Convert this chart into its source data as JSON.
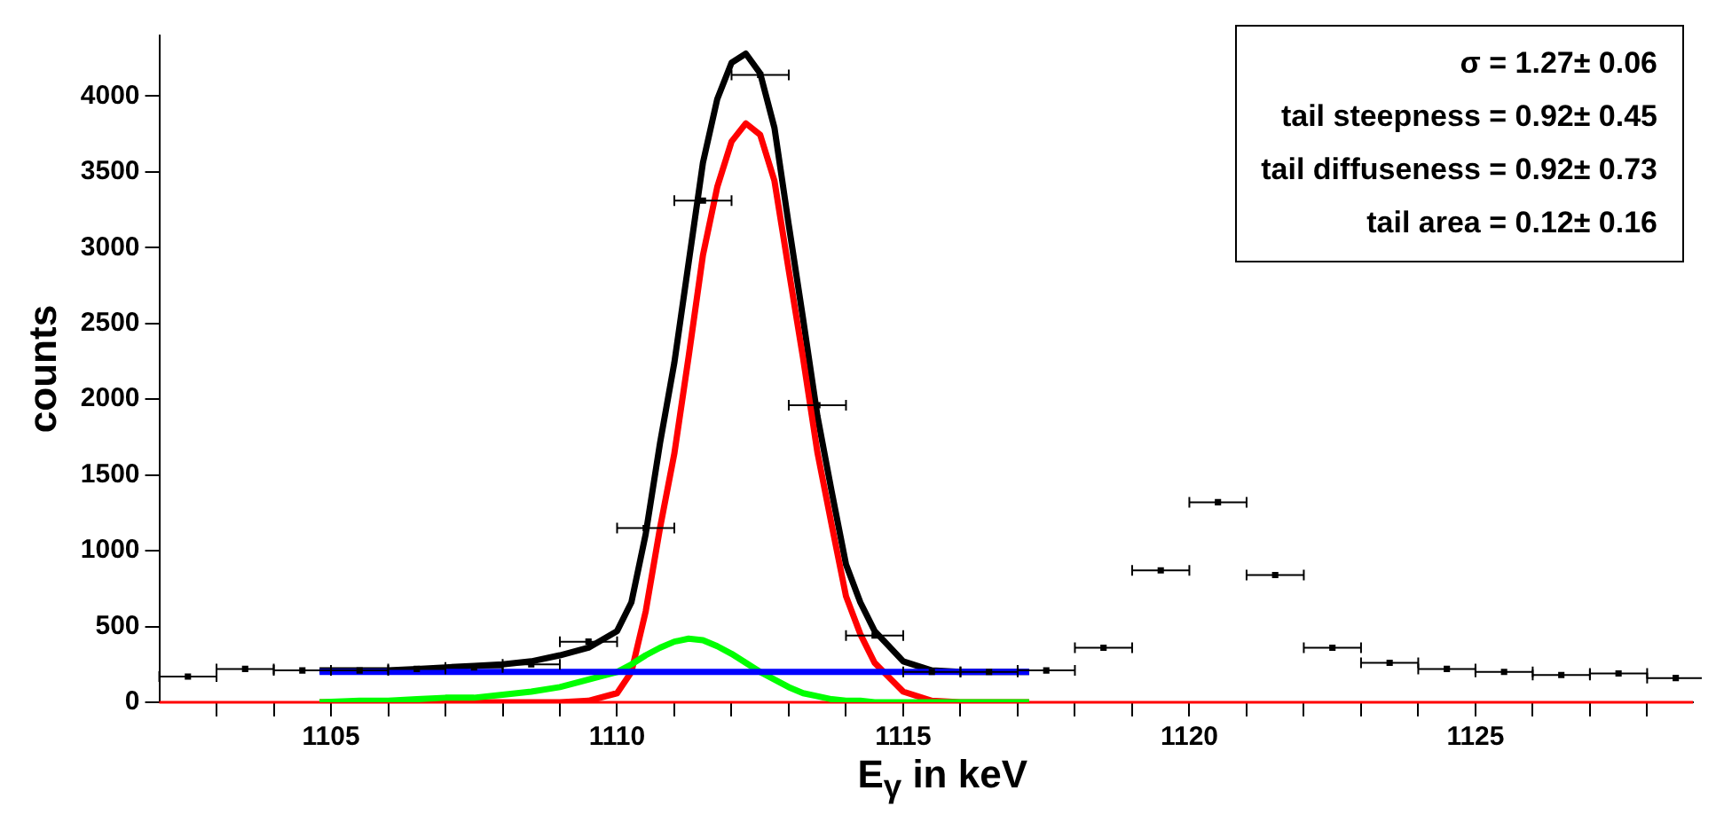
{
  "chart_data": {
    "type": "scatter",
    "xlabel": "E$_{γ}$ in keV",
    "ylabel": "counts",
    "annotations": [
      "σ = 1.27± 0.06",
      "tail steepness = 0.92± 0.45",
      "tail diffuseness = 0.92± 0.73",
      "tail area = 0.12± 0.16"
    ],
    "xlim": [
      1102,
      1128.8
    ],
    "xticks": [
      {
        "value": 1103,
        "label": null
      },
      {
        "value": 1104,
        "label": null
      },
      1105,
      {
        "value": 1106,
        "label": null
      },
      {
        "value": 1107,
        "label": null
      },
      {
        "value": 1108,
        "label": null
      },
      {
        "value": 1109,
        "label": null
      },
      1110,
      {
        "value": 1111,
        "label": null
      },
      {
        "value": 1112,
        "label": null
      },
      {
        "value": 1113,
        "label": null
      },
      {
        "value": 1114,
        "label": null
      },
      1115,
      {
        "value": 1116,
        "label": null
      },
      {
        "value": 1117,
        "label": null
      },
      {
        "value": 1118,
        "label": null
      },
      {
        "value": 1119,
        "label": null
      },
      1120,
      {
        "value": 1121,
        "label": null
      },
      {
        "value": 1122,
        "label": null
      },
      {
        "value": 1123,
        "label": null
      },
      {
        "value": 1124,
        "label": null
      },
      1125,
      {
        "value": 1126,
        "label": null
      },
      {
        "value": 1127,
        "label": null
      },
      {
        "value": 1128,
        "label": null
      }
    ],
    "ylim": [
      0,
      4400
    ],
    "yticks": [
      0,
      500,
      1000,
      1500,
      2000,
      2500,
      3000,
      3500,
      4000
    ],
    "grid": false,
    "legend": false,
    "ref_lines": [
      {
        "axis": "y",
        "value": 0,
        "color": "#ff0000"
      }
    ],
    "series": [
      {
        "type": "line",
        "marker": "none",
        "color": "#0000ff",
        "x": [
          1104.8,
          1117.2
        ],
        "values": [
          200,
          200
        ]
      },
      {
        "type": "line",
        "marker": "none",
        "color": "#00ff00",
        "x": [
          1104.8,
          1105.5,
          1106,
          1106.5,
          1107,
          1107.5,
          1108,
          1108.5,
          1109,
          1109.5,
          1110,
          1110.25,
          1110.5,
          1110.75,
          1111,
          1111.25,
          1111.5,
          1111.75,
          1112,
          1112.25,
          1112.5,
          1112.75,
          1113,
          1113.25,
          1113.5,
          1113.75,
          1114,
          1114.25,
          1114.5,
          1115,
          1115.5,
          1116,
          1116.5,
          1117.2
        ],
        "values": [
          0,
          10,
          10,
          20,
          30,
          30,
          50,
          70,
          100,
          150,
          200,
          250,
          310,
          360,
          400,
          420,
          410,
          370,
          320,
          260,
          200,
          150,
          100,
          60,
          40,
          20,
          10,
          10,
          0,
          0,
          0,
          0,
          0,
          0
        ]
      },
      {
        "type": "line",
        "marker": "none",
        "color": "#ff0000",
        "x": [
          1104.8,
          1105.5,
          1106,
          1106.5,
          1107,
          1107.5,
          1108,
          1108.5,
          1109,
          1109.5,
          1110,
          1110.25,
          1110.5,
          1110.75,
          1111,
          1111.25,
          1111.5,
          1111.75,
          1112,
          1112.25,
          1112.5,
          1112.75,
          1113,
          1113.25,
          1113.5,
          1113.75,
          1114,
          1114.25,
          1114.5,
          1115,
          1115.5,
          1116,
          1116.5,
          1117.2
        ],
        "values": [
          0,
          0,
          0,
          0,
          0,
          0,
          0,
          0,
          0,
          10,
          60,
          200,
          600,
          1150,
          1640,
          2280,
          2950,
          3400,
          3700,
          3820,
          3745,
          3440,
          2850,
          2270,
          1650,
          1170,
          700,
          450,
          260,
          70,
          10,
          0,
          0,
          0
        ]
      },
      {
        "type": "line",
        "marker": "none",
        "color": "#000000",
        "x": [
          1104.8,
          1105.5,
          1106,
          1106.5,
          1107,
          1107.5,
          1108,
          1108.5,
          1109,
          1109.5,
          1110,
          1110.25,
          1110.5,
          1110.75,
          1111,
          1111.25,
          1111.5,
          1111.75,
          1112,
          1112.25,
          1112.5,
          1112.75,
          1113,
          1113.25,
          1113.5,
          1113.75,
          1114,
          1114.25,
          1114.5,
          1115,
          1115.5,
          1116,
          1116.5,
          1117.2
        ],
        "values": [
          210,
          210,
          210,
          220,
          230,
          240,
          250,
          270,
          310,
          360,
          470,
          660,
          1110,
          1710,
          2240,
          2900,
          3560,
          3980,
          4220,
          4280,
          4150,
          3790,
          3150,
          2530,
          1890,
          1390,
          910,
          660,
          470,
          270,
          210,
          200,
          200,
          200
        ]
      },
      {
        "marker": "square",
        "color": "#000000",
        "x": [
          1102.5,
          1103.5,
          1104.5,
          1105.5,
          1106.5,
          1107.5,
          1108.5,
          1109.5,
          1110.5,
          1111.5,
          1112.5,
          1113.5,
          1114.5,
          1115.5,
          1116.5,
          1117.5,
          1118.5,
          1119.5,
          1120.5,
          1121.5,
          1122.5,
          1123.5,
          1124.5,
          1125.5,
          1126.5,
          1127.5,
          1128.5
        ],
        "values": [
          170,
          220,
          210,
          210,
          220,
          230,
          250,
          400,
          1150,
          3310,
          4140,
          1960,
          440,
          200,
          200,
          210,
          360,
          870,
          1320,
          840,
          360,
          260,
          220,
          200,
          180,
          190,
          160
        ],
        "xerrors": [
          0.5,
          0.5,
          0.5,
          0.5,
          0.5,
          0.5,
          0.5,
          0.5,
          0.5,
          0.5,
          0.5,
          0.5,
          0.5,
          0.5,
          0.5,
          0.5,
          0.5,
          0.5,
          0.5,
          0.5,
          0.5,
          0.5,
          0.5,
          0.5,
          0.5,
          0.5,
          0.5
        ]
      }
    ]
  }
}
